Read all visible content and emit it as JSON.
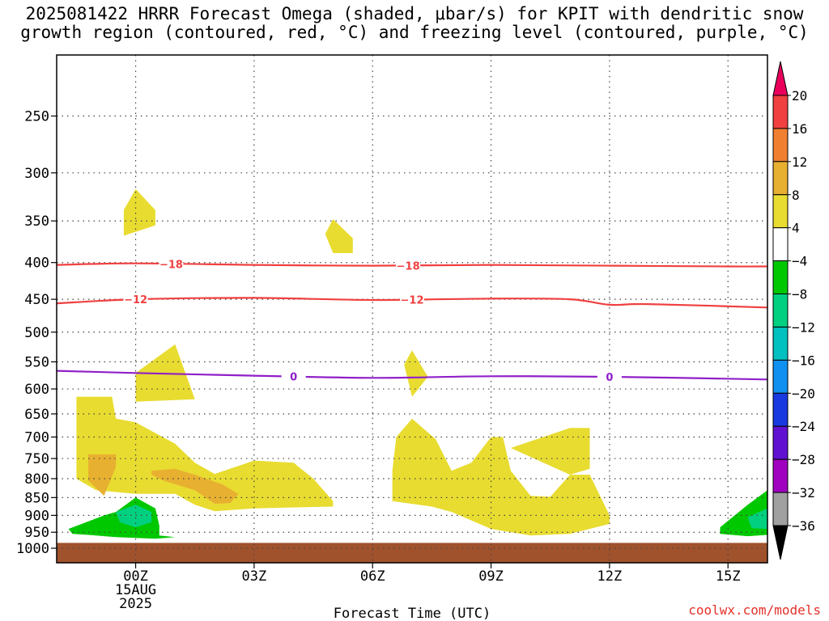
{
  "title_line1": "2025081422 HRRR Forecast Omega (shaded, μbar/s) for KPIT with dendritic snow",
  "title_line2": "growth region (contoured, red, °C) and freezing level (contoured, purple, °C)",
  "credit": "coolwx.com/models",
  "chart_data": {
    "type": "time-height",
    "title": "2025081422 HRRR Forecast Omega (shaded, μbar/s) for KPIT with dendritic snow growth region (contoured, red, °C) and freezing level (contoured, purple, °C)",
    "xlabel": "Forecast Time (UTC)",
    "ylabel": "",
    "x_ticks": [
      {
        "hour": 0,
        "label": "00Z",
        "sub1": "15AUG",
        "sub2": "2025"
      },
      {
        "hour": 3,
        "label": "03Z"
      },
      {
        "hour": 6,
        "label": "06Z"
      },
      {
        "hour": 9,
        "label": "09Z"
      },
      {
        "hour": 12,
        "label": "12Z"
      },
      {
        "hour": 15,
        "label": "15Z"
      }
    ],
    "x_range_hours": [
      -2,
      16
    ],
    "y_ticks": [
      250,
      300,
      350,
      400,
      450,
      500,
      550,
      600,
      650,
      700,
      750,
      800,
      850,
      900,
      950,
      1000
    ],
    "y_range_hPa": [
      200,
      1000
    ],
    "grid": true,
    "surface_color": "#a0522d",
    "surface_pressure_hPa": 983,
    "colorbar": {
      "labels": [
        "20",
        "16",
        "12",
        "8",
        "4",
        "−4",
        "−8",
        "−12",
        "−16",
        "−20",
        "−24",
        "−28",
        "−32",
        "−36"
      ],
      "colors": [
        "#e8005a",
        "#f04040",
        "#f08030",
        "#e8b030",
        "#e8dc30",
        "#ffffff",
        "#00c800",
        "#00d080",
        "#00c0c0",
        "#1090f0",
        "#1838e0",
        "#6010d0",
        "#a000c0",
        "#a0a0a0",
        "#000000"
      ]
    },
    "contours": [
      {
        "label": "−18",
        "color": "#f04040",
        "label_positions_hours": [
          0.9,
          6.9
        ],
        "points": [
          [
            -2,
            403
          ],
          [
            0,
            401
          ],
          [
            3,
            403
          ],
          [
            6,
            404
          ],
          [
            9,
            403
          ],
          [
            12,
            404
          ],
          [
            15,
            405
          ],
          [
            16,
            405
          ]
        ]
      },
      {
        "label": "−12",
        "color": "#f04040",
        "label_positions_hours": [
          0,
          7
        ],
        "points": [
          [
            -2,
            456
          ],
          [
            0,
            450
          ],
          [
            3,
            448
          ],
          [
            6,
            451
          ],
          [
            9,
            449
          ],
          [
            11,
            450
          ],
          [
            12,
            458
          ],
          [
            13,
            457
          ],
          [
            16,
            462
          ]
        ]
      },
      {
        "label": "0",
        "color": "#9020c8",
        "label_positions_hours": [
          4,
          12
        ],
        "points": [
          [
            -2,
            566
          ],
          [
            0,
            570
          ],
          [
            3,
            575
          ],
          [
            6,
            579
          ],
          [
            9,
            576
          ],
          [
            12,
            577
          ],
          [
            16,
            582
          ]
        ]
      }
    ],
    "omega_regions": [
      {
        "value_band": "4 to 8",
        "color": "#e8dc30",
        "points": [
          [
            -0.3,
            338
          ],
          [
            0,
            316
          ],
          [
            0.5,
            338
          ],
          [
            0.5,
            355
          ],
          [
            -0.3,
            367
          ]
        ]
      },
      {
        "value_band": "4 to 8",
        "color": "#e8dc30",
        "points": [
          [
            4.8,
            365
          ],
          [
            5,
            348
          ],
          [
            5.5,
            370
          ],
          [
            5.5,
            388
          ],
          [
            5,
            388
          ]
        ]
      },
      {
        "value_band": "4 to 8",
        "color": "#e8dc30",
        "points": [
          [
            0,
            570
          ],
          [
            1,
            520
          ],
          [
            1.5,
            620
          ],
          [
            0,
            625
          ]
        ]
      },
      {
        "value_band": "4 to 8",
        "color": "#e8dc30",
        "points": [
          [
            6.8,
            555
          ],
          [
            7,
            530
          ],
          [
            7.4,
            577
          ],
          [
            7,
            615
          ]
        ]
      },
      {
        "value_band": "4 to 8",
        "color": "#e8dc30",
        "points": [
          [
            9.5,
            725
          ],
          [
            11,
            680
          ],
          [
            11.5,
            680
          ],
          [
            11.5,
            775
          ],
          [
            11,
            790
          ]
        ]
      },
      {
        "value_band": "4 to 8",
        "color": "#e8dc30",
        "points": [
          [
            -1.5,
            615
          ],
          [
            -0.6,
            615
          ],
          [
            -0.5,
            660
          ],
          [
            0,
            668
          ],
          [
            1,
            715
          ],
          [
            1.5,
            760
          ],
          [
            2,
            788
          ],
          [
            3,
            755
          ],
          [
            4,
            760
          ],
          [
            4.5,
            800
          ],
          [
            5,
            860
          ],
          [
            5,
            875
          ],
          [
            3,
            880
          ],
          [
            2,
            888
          ],
          [
            1.5,
            870
          ],
          [
            1,
            840
          ],
          [
            0,
            840
          ],
          [
            -1,
            830
          ],
          [
            -1.5,
            800
          ],
          [
            -1.5,
            760
          ]
        ]
      },
      {
        "value_band": "4 to 8",
        "color": "#e8dc30",
        "points": [
          [
            6.6,
            700
          ],
          [
            7,
            660
          ],
          [
            7.6,
            705
          ],
          [
            8,
            780
          ],
          [
            8.5,
            760
          ],
          [
            9,
            700
          ],
          [
            9.3,
            700
          ],
          [
            9.5,
            780
          ],
          [
            10,
            845
          ],
          [
            10.5,
            848
          ],
          [
            11,
            790
          ],
          [
            11.5,
            790
          ],
          [
            12,
            900
          ],
          [
            12,
            925
          ],
          [
            11,
            955
          ],
          [
            10,
            960
          ],
          [
            9,
            940
          ],
          [
            8,
            890
          ],
          [
            7.5,
            875
          ],
          [
            6.5,
            860
          ],
          [
            6.5,
            780
          ]
        ]
      },
      {
        "value_band": "8 to 12",
        "color": "#e8b030",
        "points": [
          [
            -1.2,
            740
          ],
          [
            -0.5,
            740
          ],
          [
            -0.5,
            770
          ],
          [
            -0.8,
            845
          ],
          [
            -1.2,
            805
          ]
        ]
      },
      {
        "value_band": "8 to 12",
        "color": "#e8b030",
        "points": [
          [
            0.4,
            780
          ],
          [
            1,
            775
          ],
          [
            1.5,
            790
          ],
          [
            2.2,
            815
          ],
          [
            2.6,
            840
          ],
          [
            2.4,
            865
          ],
          [
            2,
            867
          ],
          [
            1.5,
            830
          ],
          [
            0.7,
            805
          ],
          [
            0.4,
            790
          ]
        ]
      },
      {
        "value_band": "−4 to −8",
        "color": "#00c800",
        "points": [
          [
            -1.7,
            940
          ],
          [
            -0.8,
            900
          ],
          [
            -0.5,
            890
          ],
          [
            0,
            850
          ],
          [
            0.5,
            880
          ],
          [
            0.6,
            930
          ],
          [
            0.6,
            960
          ],
          [
            1,
            965
          ],
          [
            0.5,
            970
          ],
          [
            -0.5,
            965
          ],
          [
            -1.2,
            958
          ],
          [
            -1.6,
            955
          ]
        ]
      },
      {
        "value_band": "−8 to −12",
        "color": "#00d080",
        "points": [
          [
            -0.5,
            890
          ],
          [
            0,
            870
          ],
          [
            0.4,
            890
          ],
          [
            0.4,
            920
          ],
          [
            0,
            935
          ],
          [
            -0.4,
            920
          ]
        ]
      },
      {
        "value_band": "−4 to −8",
        "color": "#00c800",
        "points": [
          [
            14.8,
            935
          ],
          [
            15.5,
            870
          ],
          [
            16,
            830
          ],
          [
            16,
            958
          ],
          [
            15.5,
            962
          ],
          [
            14.8,
            955
          ]
        ]
      },
      {
        "value_band": "−8 to −12",
        "color": "#00d080",
        "points": [
          [
            15.5,
            905
          ],
          [
            16,
            880
          ],
          [
            16,
            940
          ],
          [
            15.6,
            938
          ]
        ]
      }
    ]
  }
}
